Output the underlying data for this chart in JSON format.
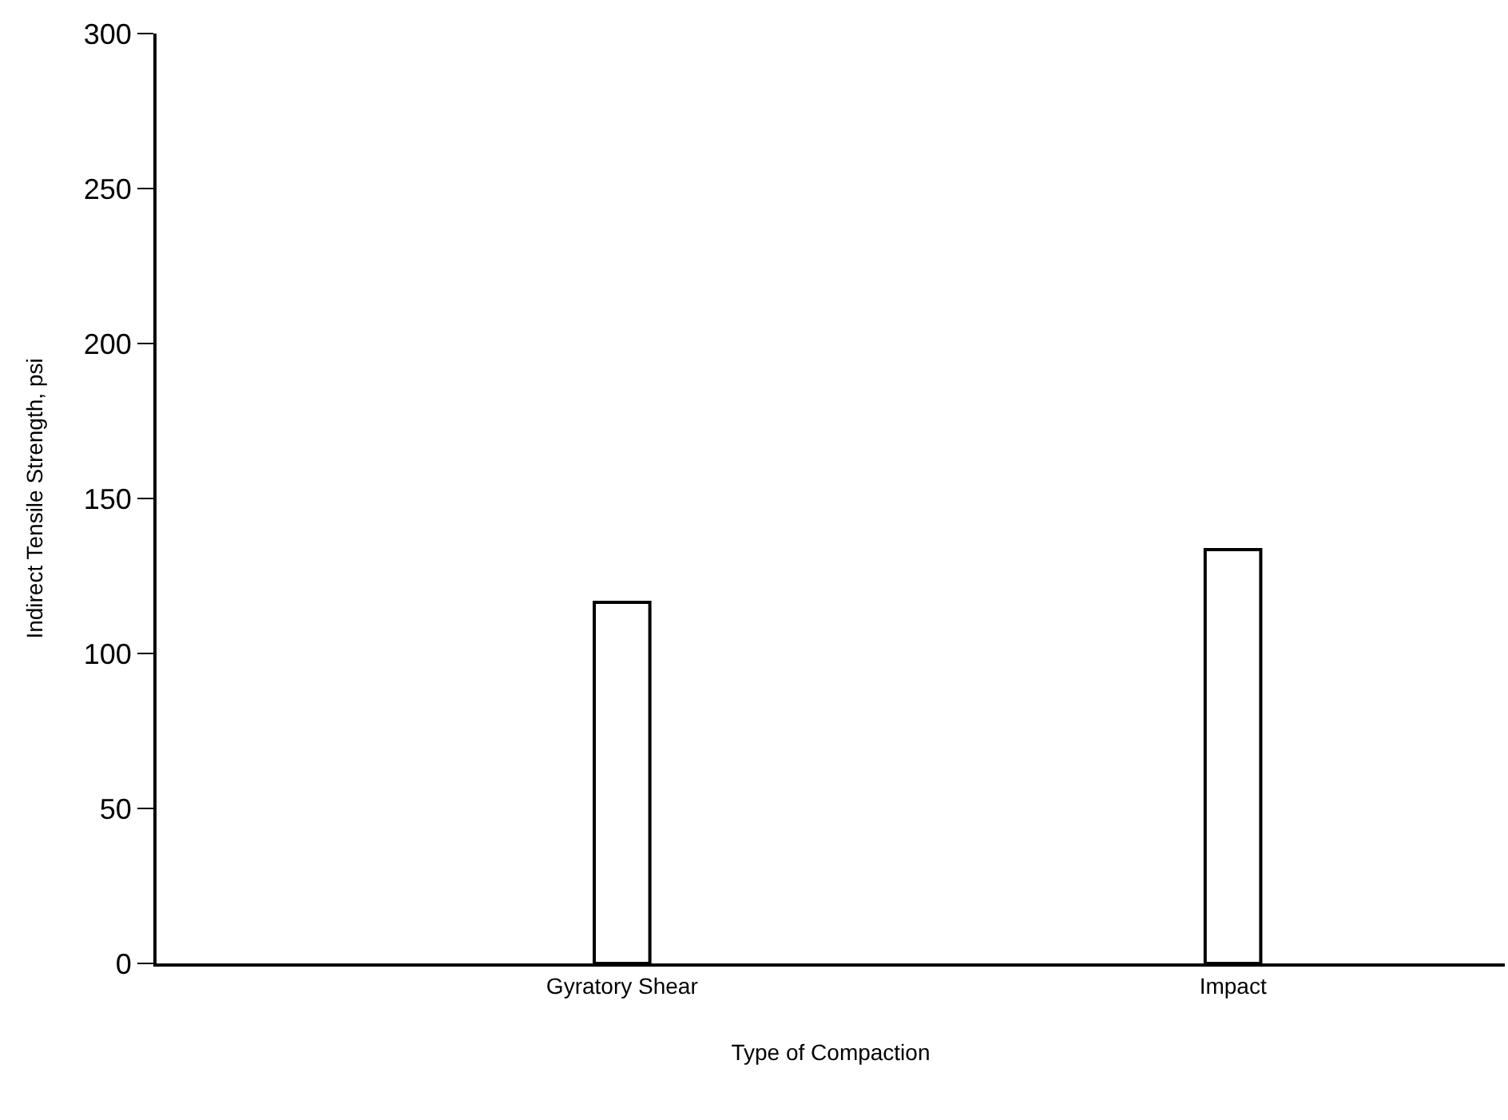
{
  "chart_data": {
    "type": "bar",
    "xlabel": "Type of Compaction",
    "ylabel": "Indirect Tensile Strength, psi",
    "categories": [
      "Gyratory Shear",
      "Impact"
    ],
    "values": [
      116.5,
      133.5
    ],
    "color": "#ffffff",
    "ylim": [
      0,
      300
    ],
    "yticks": [
      0,
      50,
      100,
      150,
      200,
      250,
      300
    ],
    "legend": false
  }
}
